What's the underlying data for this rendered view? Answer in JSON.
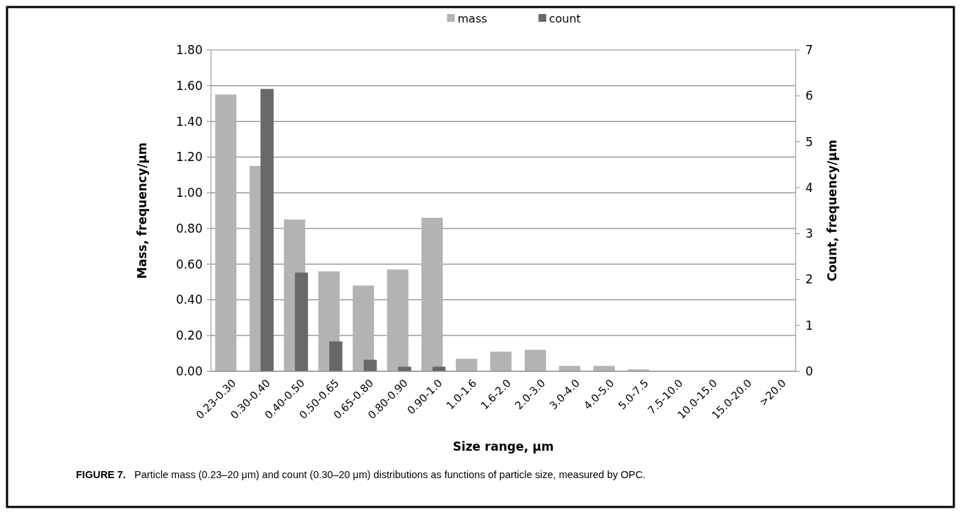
{
  "chart_data": {
    "type": "bar",
    "categories": [
      "0.23-0.30",
      "0.30-0.40",
      "0.40-0.50",
      "0.50-0.65",
      "0.65-0.80",
      "0.80-0.90",
      "0.90-1.0",
      "1.0-1.6",
      "1.6-2.0",
      "2.0-3.0",
      "3.0-4.0",
      "4.0-5.0",
      "5.0-7.5",
      "7.5-10.0",
      "10.0-15.0",
      "15.0-20.0",
      ">20.0"
    ],
    "series": [
      {
        "name": "mass",
        "color": "#b3b3b3",
        "values": [
          1.55,
          1.15,
          0.85,
          0.56,
          0.48,
          0.57,
          0.86,
          0.07,
          0.11,
          0.12,
          0.03,
          0.03,
          0.01,
          0,
          0,
          0,
          0
        ]
      },
      {
        "name": "count",
        "color": "#686868",
        "axis": "y2",
        "values": [
          null,
          6.15,
          2.15,
          0.65,
          0.25,
          0.1,
          0.1,
          0,
          0,
          0,
          0,
          0,
          0,
          0,
          0,
          0,
          0
        ]
      }
    ],
    "xlabel": "Size range, µm",
    "ylabel": "Mass, frequency/µm",
    "y2label": "Count, frequency/µm",
    "ylim": [
      0,
      1.8
    ],
    "yticks": [
      {
        "value": 0,
        "label": "0.00"
      },
      {
        "value": 0.2,
        "label": "0.20"
      },
      {
        "value": 0.4,
        "label": "0.40"
      },
      {
        "value": 0.6,
        "label": "0.60"
      },
      {
        "value": 0.8,
        "label": "0.80"
      },
      {
        "value": 1,
        "label": "1.00"
      },
      {
        "value": 1.2,
        "label": "1.20"
      },
      {
        "value": 1.4,
        "label": "1.40"
      },
      {
        "value": 1.6,
        "label": "1.60"
      },
      {
        "value": 1.8,
        "label": "1.80"
      }
    ],
    "y2lim": [
      0,
      7
    ],
    "y2ticks": [
      0,
      1,
      2,
      3,
      4,
      5,
      6,
      7
    ],
    "grid": "y",
    "legend": "top",
    "annotations": [
      "FIGURE 7.   Particle mass (0.23–20 μm) and count (0.30–20 μm) distributions as functions of particle size, measured by OPC."
    ]
  }
}
